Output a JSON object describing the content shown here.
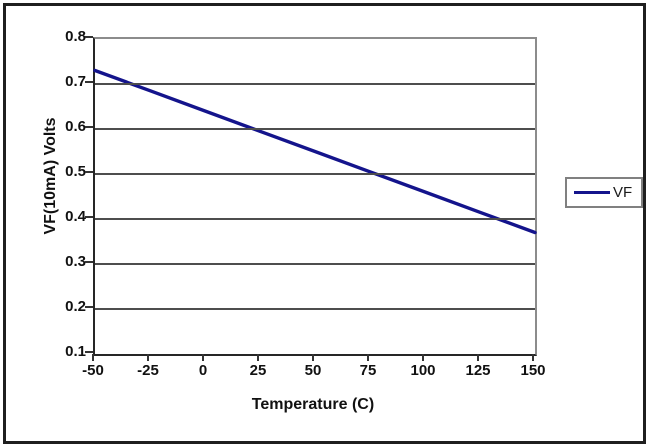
{
  "chart_data": {
    "type": "line",
    "title": "",
    "xlabel": "Temperature (C)",
    "ylabel": "VF(10mA) Volts",
    "xlim": [
      -50,
      150
    ],
    "ylim": [
      0.1,
      0.8
    ],
    "x_ticks": [
      -50,
      -25,
      0,
      25,
      50,
      75,
      100,
      125,
      150
    ],
    "x_tick_labels": [
      "-50",
      "-25",
      "0",
      "25",
      "50",
      "75",
      "100",
      "125",
      "150"
    ],
    "y_ticks": [
      0.8,
      0.7,
      0.6,
      0.5,
      0.4,
      0.3,
      0.2,
      0.1
    ],
    "y_tick_labels": [
      "0.8",
      "0.7",
      "0.6",
      "0.5",
      "0.4",
      "0.3",
      "0.2",
      "0.1"
    ],
    "grid": "horizontal",
    "legend_position": "right",
    "series": [
      {
        "name": "VF",
        "color": "#14148C",
        "x": [
          -50,
          -25,
          0,
          25,
          50,
          75,
          100,
          125,
          150
        ],
        "y": [
          0.73,
          0.685,
          0.64,
          0.595,
          0.55,
          0.505,
          0.46,
          0.415,
          0.37
        ]
      }
    ]
  },
  "style": {
    "background": "#ffffff",
    "frame_border_color": "#1f1f1f",
    "plot_border_color": "#8c8c8c",
    "axis_color": "#262626",
    "grid_color": "#4d4d4d",
    "tick_color": "#333333",
    "text_color": "#111111",
    "legend_border_color": "#808080",
    "line_color": "#14148C"
  }
}
